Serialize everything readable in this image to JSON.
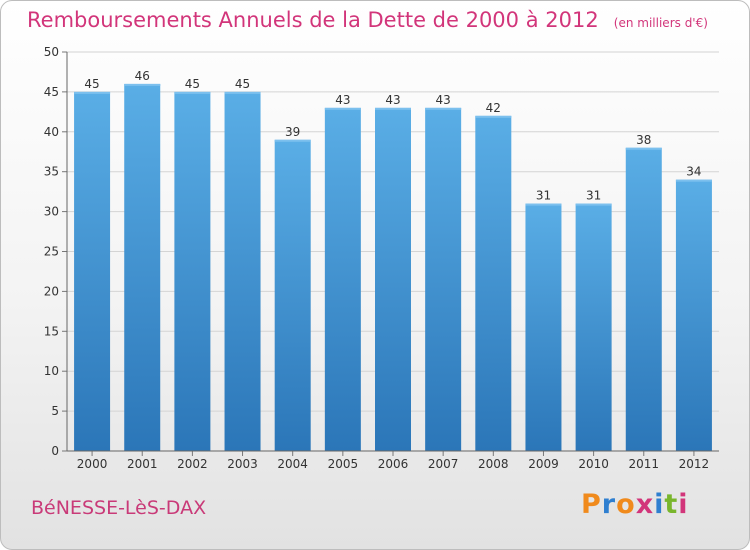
{
  "chart_data": {
    "type": "bar",
    "title": "Remboursements Annuels de la Dette de 2000 à 2012",
    "subtitle": "(en milliers d'€)",
    "categories": [
      "2000",
      "2001",
      "2002",
      "2003",
      "2004",
      "2005",
      "2006",
      "2007",
      "2008",
      "2009",
      "2010",
      "2011",
      "2012"
    ],
    "values": [
      45,
      46,
      45,
      45,
      39,
      43,
      43,
      43,
      42,
      31,
      31,
      38,
      34
    ],
    "ylim": [
      0,
      50
    ],
    "yticks": [
      0,
      5,
      10,
      15,
      20,
      25,
      30,
      35,
      40,
      45,
      50
    ],
    "grid": true,
    "bar_color": "#4f9fdc",
    "bar_color_dark": "#2a73b5"
  },
  "footer": {
    "commune": "BéNESSE-LèS-DAX",
    "logo": "Proxiti"
  },
  "colors": {
    "title": "#d2357a",
    "logo_letters": [
      "#f08a1c",
      "#2f7fd0",
      "#f08a1c",
      "#d2357a",
      "#2f7fd0",
      "#79b62c",
      "#d2357a"
    ]
  }
}
